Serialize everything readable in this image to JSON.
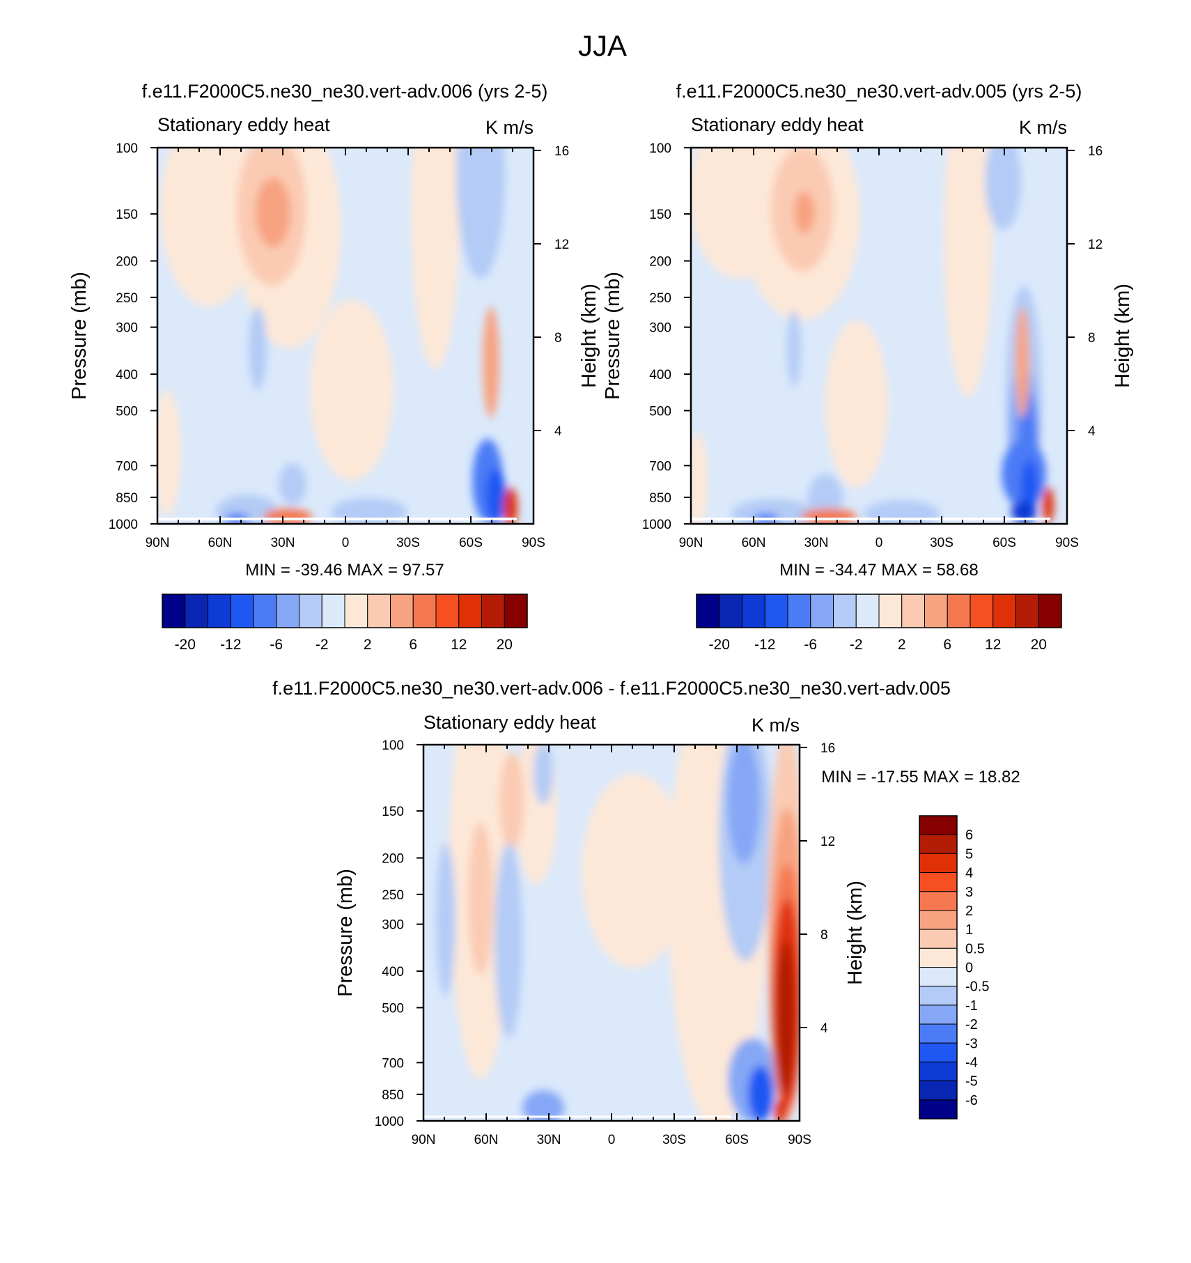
{
  "figure": {
    "title": "JJA"
  },
  "panel_left": {
    "title": "f.e11.F2000C5.ne30_ne30.vert-adv.006 (yrs 2-5)",
    "subtitle": "Stationary eddy heat",
    "units": "K m/s",
    "stats": "MIN = -39.46  MAX =  97.57"
  },
  "panel_right": {
    "title": "f.e11.F2000C5.ne30_ne30.vert-adv.005 (yrs 2-5)",
    "subtitle": "Stationary eddy heat",
    "units": "K m/s",
    "stats": "MIN = -34.47  MAX =  58.68"
  },
  "panel_diff": {
    "title": "f.e11.F2000C5.ne30_ne30.vert-adv.006 - f.e11.F2000C5.ne30_ne30.vert-adv.005",
    "subtitle": "Stationary eddy heat",
    "units": "K m/s",
    "stats": "MIN = -17.55  MAX =  18.82"
  },
  "axes": {
    "ylabel": "Pressure (mb)",
    "ylabel_right": "Height (km)",
    "x_ticks": [
      "90N",
      "60N",
      "30N",
      "0",
      "30S",
      "60S",
      "90S"
    ],
    "p_ticks": [
      "100",
      "150",
      "200",
      "250",
      "300",
      "400",
      "500",
      "700",
      "850",
      "1000"
    ],
    "z_ticks": [
      "16",
      "12",
      "8",
      "4"
    ]
  },
  "colorbar_main": {
    "labels": [
      "-20",
      "-12",
      "-6",
      "-2",
      "2",
      "6",
      "12",
      "20"
    ],
    "colors": [
      "#000088",
      "#0a27b4",
      "#0e3ad6",
      "#1f57f3",
      "#4b7cf6",
      "#85a7f6",
      "#b3cbf6",
      "#dbe9fb",
      "#fde8d8",
      "#fbcab2",
      "#f7a381",
      "#f57851",
      "#f64f22",
      "#e03007",
      "#b31d05",
      "#870000"
    ]
  },
  "colorbar_diff": {
    "labels": [
      "6",
      "5",
      "4",
      "3",
      "2",
      "1",
      "0.5",
      "0",
      "-0.5",
      "-1",
      "-2",
      "-3",
      "-4",
      "-5",
      "-6"
    ],
    "colors": [
      "#870000",
      "#b31d05",
      "#e03007",
      "#f64f22",
      "#f57851",
      "#f7a381",
      "#fbcab2",
      "#fde8d8",
      "#dbe9fb",
      "#b3cbf6",
      "#85a7f6",
      "#4b7cf6",
      "#1f57f3",
      "#0e3ad6",
      "#0a27b4",
      "#000088"
    ]
  },
  "chart_data": [
    {
      "type": "heatmap",
      "title": "f.e11.F2000C5.ne30_ne30.vert-adv.006 (yrs 2-5)",
      "variable": "Stationary eddy heat",
      "units": "K m/s",
      "xlabel": "",
      "ylabel": "Pressure (mb)",
      "x": [
        "90N",
        "60N",
        "30N",
        "0",
        "30S",
        "60S",
        "90S"
      ],
      "y": [
        100,
        150,
        200,
        250,
        300,
        400,
        500,
        700,
        850,
        1000
      ],
      "min": -39.46,
      "max": 97.57
    },
    {
      "type": "heatmap",
      "title": "f.e11.F2000C5.ne30_ne30.vert-adv.005 (yrs 2-5)",
      "variable": "Stationary eddy heat",
      "units": "K m/s",
      "xlabel": "",
      "ylabel": "Pressure (mb)",
      "x": [
        "90N",
        "60N",
        "30N",
        "0",
        "30S",
        "60S",
        "90S"
      ],
      "y": [
        100,
        150,
        200,
        250,
        300,
        400,
        500,
        700,
        850,
        1000
      ],
      "min": -34.47,
      "max": 58.68
    },
    {
      "type": "heatmap",
      "title": "f.e11.F2000C5.ne30_ne30.vert-adv.006 - f.e11.F2000C5.ne30_ne30.vert-adv.005",
      "variable": "Stationary eddy heat",
      "units": "K m/s",
      "xlabel": "",
      "ylabel": "Pressure (mb)",
      "x": [
        "90N",
        "60N",
        "30N",
        "0",
        "30S",
        "60S",
        "90S"
      ],
      "y": [
        100,
        150,
        200,
        250,
        300,
        400,
        500,
        700,
        850,
        1000
      ],
      "min": -17.55,
      "max": 18.82
    }
  ]
}
